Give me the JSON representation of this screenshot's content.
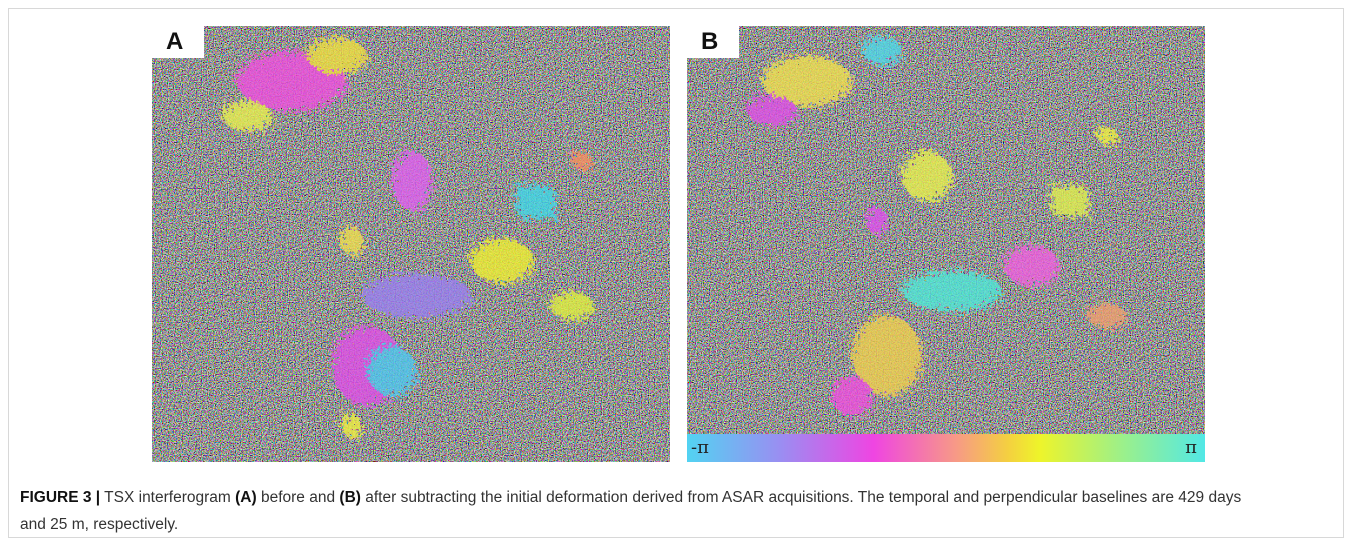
{
  "figure": {
    "panels": [
      {
        "label": "A"
      },
      {
        "label": "B"
      }
    ],
    "colorbar": {
      "min_label": "-π",
      "max_label": "π"
    },
    "caption": {
      "label": "FIGURE 3 |",
      "parts": [
        "TSX interferogram",
        "(A)",
        "before and",
        "(B)",
        "after subtracting the initial deformation derived from ASAR acquisitions. The temporal and perpendicular baselines are 429 days and 25 m, respectively."
      ]
    }
  }
}
